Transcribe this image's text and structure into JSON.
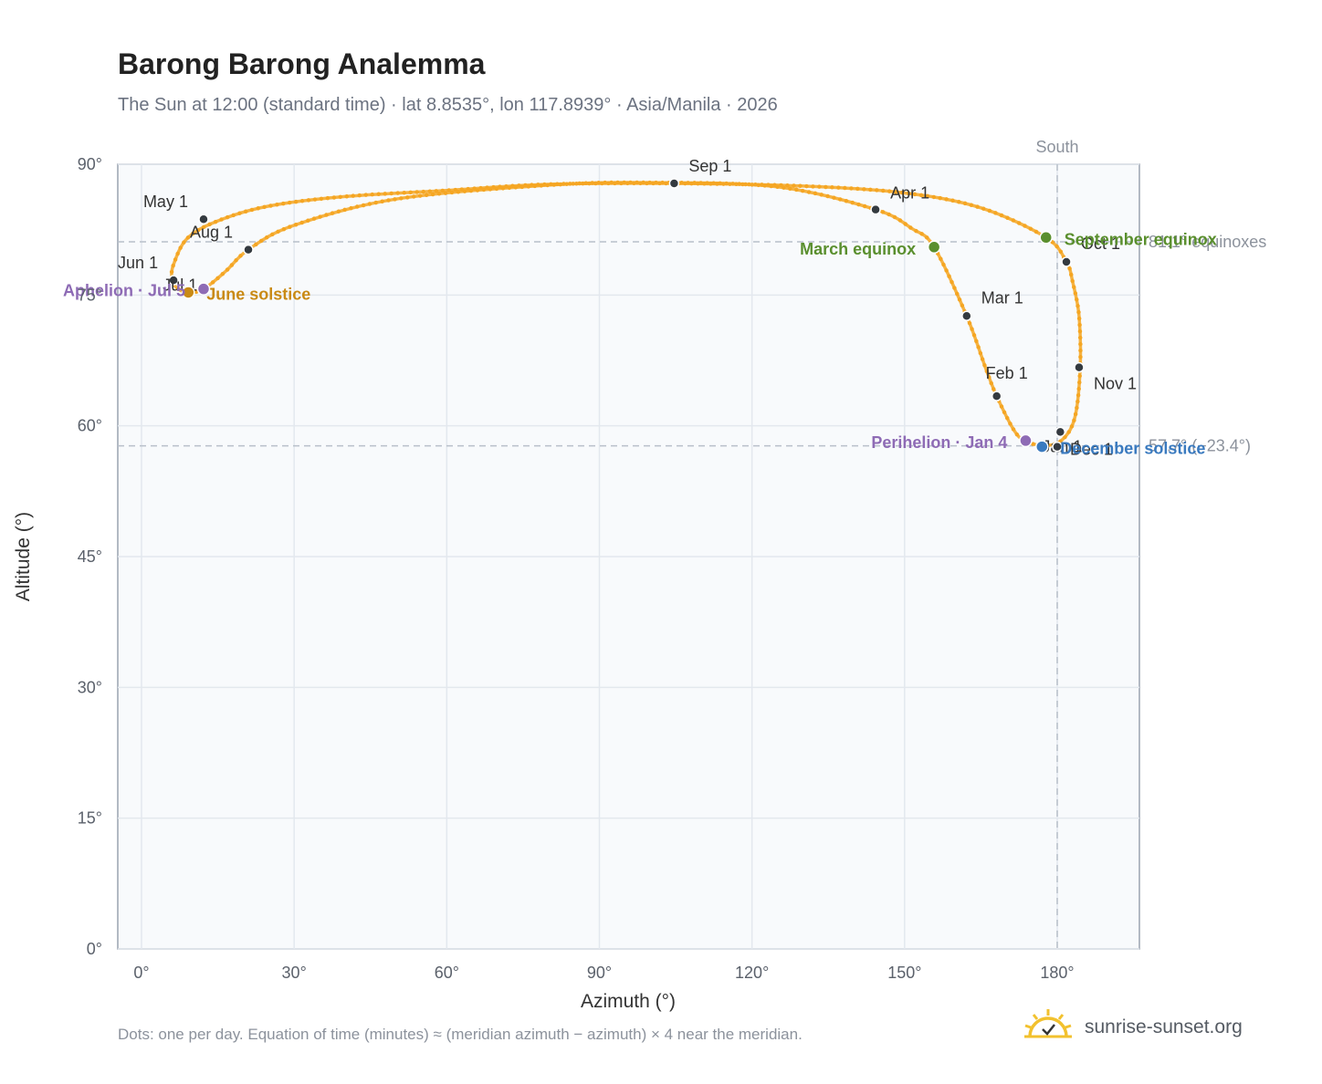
{
  "title": "Barong Barong Analemma",
  "subtitle": "The Sun at 12:00 (standard time) · lat 8.8535°, lon 117.8939° · Asia/Manila · 2026",
  "footnote": "Dots: one per day. Equation of time (minutes) ≈ (meridian azimuth − azimuth) × 4 near the meridian.",
  "brand": {
    "name": "sunrise-sunset.org",
    "icon": "sun-logo-icon"
  },
  "colors": {
    "curve": "#f5a623",
    "month_marker": "#343a40",
    "equinox": "#5a8f2e",
    "june_solstice": "#c98a15",
    "december_solstice": "#3a7abf",
    "apsis": "#8e6bb5",
    "plot_bg": "#f8fafc",
    "grid": "#e3e8ee",
    "frame": "#9aa3b0",
    "reference_line": "#b8c0ca"
  },
  "chart_data": {
    "type": "scatter",
    "title": "Barong Barong Analemma",
    "xlabel": "Azimuth (°)",
    "ylabel": "Altitude (°)",
    "xlim": [
      -5,
      195
    ],
    "ylim": [
      0,
      90
    ],
    "x_ticks": [
      0,
      30,
      60,
      90,
      120,
      150,
      180
    ],
    "x_tick_labels": [
      "0°",
      "30°",
      "60°",
      "90°",
      "120°",
      "150°",
      "180°"
    ],
    "y_ticks": [
      0,
      15,
      30,
      45,
      60,
      75,
      90
    ],
    "y_tick_labels": [
      "0°",
      "15°",
      "30°",
      "45°",
      "60°",
      "75°",
      "90°"
    ],
    "grid": true,
    "path_anchors": [
      {
        "az": 177.0,
        "alt": 57.7
      },
      {
        "az": 180.6,
        "alt": 58.2
      },
      {
        "az": 183.4,
        "alt": 60.8
      },
      {
        "az": 184.5,
        "alt": 66.5
      },
      {
        "az": 184.3,
        "alt": 72.5
      },
      {
        "az": 183.0,
        "alt": 76.6
      },
      {
        "az": 181.8,
        "alt": 78.8
      },
      {
        "az": 177.8,
        "alt": 81.6
      },
      {
        "az": 165.0,
        "alt": 85.0
      },
      {
        "az": 150.0,
        "alt": 86.7
      },
      {
        "az": 130.0,
        "alt": 87.5
      },
      {
        "az": 104.7,
        "alt": 87.8
      },
      {
        "az": 80.0,
        "alt": 87.7
      },
      {
        "az": 60.0,
        "alt": 87.0
      },
      {
        "az": 40.0,
        "alt": 86.3
      },
      {
        "az": 25.0,
        "alt": 85.2
      },
      {
        "az": 15.0,
        "alt": 83.5
      },
      {
        "az": 9.0,
        "alt": 81.5
      },
      {
        "az": 6.3,
        "alt": 78.5
      },
      {
        "az": 6.0,
        "alt": 76.8
      },
      {
        "az": 7.0,
        "alt": 75.8
      },
      {
        "az": 9.2,
        "alt": 75.3
      },
      {
        "az": 12.2,
        "alt": 75.7
      },
      {
        "az": 16.5,
        "alt": 77.7
      },
      {
        "az": 21.0,
        "alt": 80.2
      },
      {
        "az": 30.0,
        "alt": 83.0
      },
      {
        "az": 50.0,
        "alt": 86.0
      },
      {
        "az": 80.0,
        "alt": 87.6
      },
      {
        "az": 100.0,
        "alt": 87.9
      },
      {
        "az": 125.0,
        "alt": 87.4
      },
      {
        "az": 144.3,
        "alt": 84.8
      },
      {
        "az": 151.5,
        "alt": 82.6
      },
      {
        "az": 155.8,
        "alt": 80.5
      },
      {
        "az": 162.2,
        "alt": 72.6
      },
      {
        "az": 166.0,
        "alt": 66.5
      },
      {
        "az": 168.1,
        "alt": 63.4
      },
      {
        "az": 171.5,
        "alt": 59.5
      },
      {
        "az": 173.8,
        "alt": 58.2
      },
      {
        "az": 177.0,
        "alt": 57.7
      }
    ],
    "month_markers": [
      {
        "label": "Jan 1",
        "az": 180.6,
        "alt": 59.3
      },
      {
        "label": "Feb 1",
        "az": 168.1,
        "alt": 63.4
      },
      {
        "label": "Mar 1",
        "az": 162.2,
        "alt": 72.6
      },
      {
        "label": "Apr 1",
        "az": 144.3,
        "alt": 84.8
      },
      {
        "label": "May 1",
        "az": 12.2,
        "alt": 83.7
      },
      {
        "label": "Jun 1",
        "az": 6.3,
        "alt": 76.7
      },
      {
        "label": "Jul 1",
        "az": 9.2,
        "alt": 75.3
      },
      {
        "label": "Aug 1",
        "az": 21.0,
        "alt": 80.2
      },
      {
        "label": "Sep 1",
        "az": 104.7,
        "alt": 87.8
      },
      {
        "label": "Oct 1",
        "az": 181.8,
        "alt": 78.8
      },
      {
        "label": "Nov 1",
        "az": 184.3,
        "alt": 66.7
      },
      {
        "label": "Dec 1",
        "az": 180.0,
        "alt": 57.6
      }
    ],
    "events": [
      {
        "label": "March equinox",
        "az": 155.8,
        "alt": 80.5,
        "kind": "equinox"
      },
      {
        "label": "September equinox",
        "az": 177.8,
        "alt": 81.6,
        "kind": "equinox"
      },
      {
        "label": "June solstice",
        "az": 9.2,
        "alt": 75.3,
        "kind": "june_solstice"
      },
      {
        "label": "December solstice",
        "az": 177.0,
        "alt": 57.6,
        "kind": "december_solstice"
      },
      {
        "label": "Aphelion · Jul 5",
        "az": 12.2,
        "alt": 75.7,
        "kind": "apsis"
      },
      {
        "label": "Perihelion · Jan 4",
        "az": 173.8,
        "alt": 58.3,
        "kind": "apsis"
      }
    ],
    "reference_lines": [
      {
        "orientation": "vertical",
        "value": 180,
        "label": "South"
      },
      {
        "orientation": "horizontal",
        "value": 81.1,
        "label": "81.1° equinoxes"
      },
      {
        "orientation": "horizontal",
        "value": 57.7,
        "label": "57.7° (−23.4°)"
      }
    ]
  }
}
